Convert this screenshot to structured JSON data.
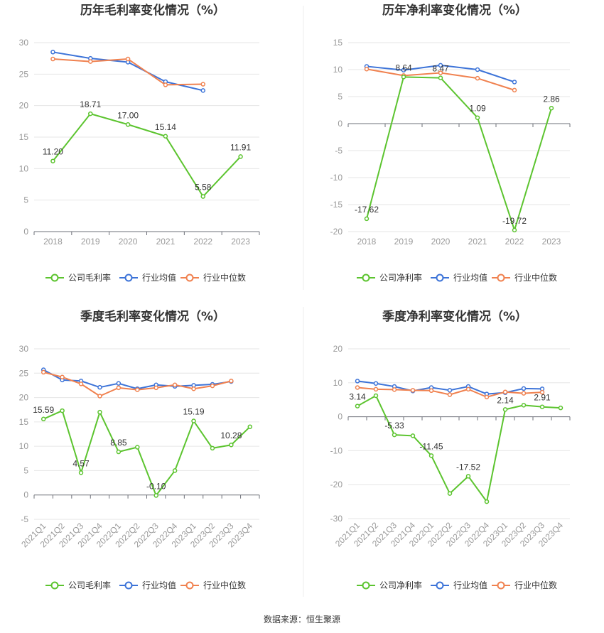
{
  "source_text": "数据来源：恒生聚源",
  "legend_labels": {
    "gross": [
      "公司毛利率",
      "行业均值",
      "行业中位数"
    ],
    "net": [
      "公司净利率",
      "行业均值",
      "行业中位数"
    ]
  },
  "colors": {
    "company": "#5cc42f",
    "industry_mean": "#3c73d8",
    "industry_median": "#f0814f"
  },
  "chart_data": [
    {
      "type": "line",
      "title": "历年毛利率变化情况（%）",
      "categories": [
        "2018",
        "2019",
        "2020",
        "2021",
        "2022",
        "2023"
      ],
      "ylim": [
        0,
        30
      ],
      "yticks": [
        0,
        5,
        10,
        15,
        20,
        25,
        30
      ],
      "grid": true,
      "legend_position": "bottom",
      "series": [
        {
          "name": "公司毛利率",
          "values": [
            11.2,
            18.71,
            17.0,
            15.14,
            5.58,
            11.91
          ],
          "labels": [
            "11.20",
            "18.71",
            "17.00",
            "15.14",
            "5.58",
            "11.91"
          ]
        },
        {
          "name": "行业均值",
          "values": [
            28.5,
            27.5,
            26.9,
            23.8,
            22.4,
            null
          ]
        },
        {
          "name": "行业中位数",
          "values": [
            27.4,
            27.0,
            27.4,
            23.3,
            23.4,
            null
          ]
        }
      ]
    },
    {
      "type": "line",
      "title": "历年净利率变化情况（%）",
      "categories": [
        "2018",
        "2019",
        "2020",
        "2021",
        "2022",
        "2023"
      ],
      "ylim": [
        -20,
        15
      ],
      "yticks": [
        -20,
        -15,
        -10,
        -5,
        0,
        5,
        10,
        15
      ],
      "grid": true,
      "legend_position": "bottom",
      "series": [
        {
          "name": "公司净利率",
          "values": [
            -17.62,
            8.64,
            8.47,
            1.09,
            -19.72,
            2.86
          ],
          "labels": [
            "-17.62",
            "8.64",
            "8.47",
            "1.09",
            "-19.72",
            "2.86"
          ]
        },
        {
          "name": "行业均值",
          "values": [
            10.6,
            9.9,
            10.8,
            10.0,
            7.7,
            null
          ]
        },
        {
          "name": "行业中位数",
          "values": [
            10.1,
            8.9,
            9.4,
            8.4,
            6.2,
            null
          ]
        }
      ]
    },
    {
      "type": "line",
      "title": "季度毛利率变化情况（%）",
      "categories": [
        "2021Q1",
        "2021Q2",
        "2021Q3",
        "2021Q4",
        "2022Q1",
        "2022Q2",
        "2022Q3",
        "2022Q4",
        "2023Q1",
        "2023Q2",
        "2023Q3",
        "2023Q4"
      ],
      "ylim": [
        -5,
        30
      ],
      "yticks": [
        -5,
        0,
        5,
        10,
        15,
        20,
        25,
        30
      ],
      "grid": true,
      "legend_position": "bottom",
      "series": [
        {
          "name": "公司毛利率",
          "values": [
            15.59,
            17.3,
            4.57,
            17.0,
            8.85,
            9.8,
            -0.1,
            5.0,
            15.19,
            9.6,
            10.28,
            14.0
          ],
          "labels": [
            "15.59",
            "",
            "4.57",
            "",
            "8.85",
            "",
            "-0.10",
            "",
            "15.19",
            "",
            "10.28",
            ""
          ]
        },
        {
          "name": "行业均值",
          "values": [
            25.7,
            23.6,
            23.4,
            22.1,
            22.9,
            21.8,
            22.6,
            22.3,
            22.5,
            22.7,
            23.3,
            null
          ]
        },
        {
          "name": "行业中位数",
          "values": [
            25.2,
            24.2,
            22.8,
            20.3,
            22.0,
            21.6,
            22.0,
            22.6,
            21.8,
            22.4,
            23.4,
            null
          ]
        }
      ]
    },
    {
      "type": "line",
      "title": "季度净利率变化情况（%）",
      "categories": [
        "2021Q1",
        "2021Q2",
        "2021Q3",
        "2021Q4",
        "2022Q1",
        "2022Q2",
        "2022Q3",
        "2022Q4",
        "2023Q1",
        "2023Q2",
        "2023Q3",
        "2023Q4"
      ],
      "ylim": [
        -30,
        20
      ],
      "yticks": [
        -30,
        -20,
        -10,
        0,
        10,
        20
      ],
      "grid": true,
      "legend_position": "bottom",
      "series": [
        {
          "name": "公司净利率",
          "values": [
            3.14,
            6.2,
            -5.33,
            -5.6,
            -11.45,
            -22.6,
            -17.52,
            -25.0,
            2.14,
            3.4,
            2.91,
            2.6
          ],
          "labels": [
            "3.14",
            "",
            "-5.33",
            "",
            "-11.45",
            "",
            "-17.52",
            "",
            "2.14",
            "",
            "2.91",
            ""
          ]
        },
        {
          "name": "行业均值",
          "values": [
            10.5,
            9.8,
            8.9,
            7.6,
            8.6,
            7.8,
            8.9,
            6.7,
            7.1,
            8.3,
            8.2,
            null
          ]
        },
        {
          "name": "行业中位数",
          "values": [
            8.6,
            8.1,
            8.0,
            7.8,
            7.7,
            6.5,
            8.1,
            5.8,
            7.3,
            6.9,
            7.2,
            null
          ]
        }
      ]
    }
  ]
}
